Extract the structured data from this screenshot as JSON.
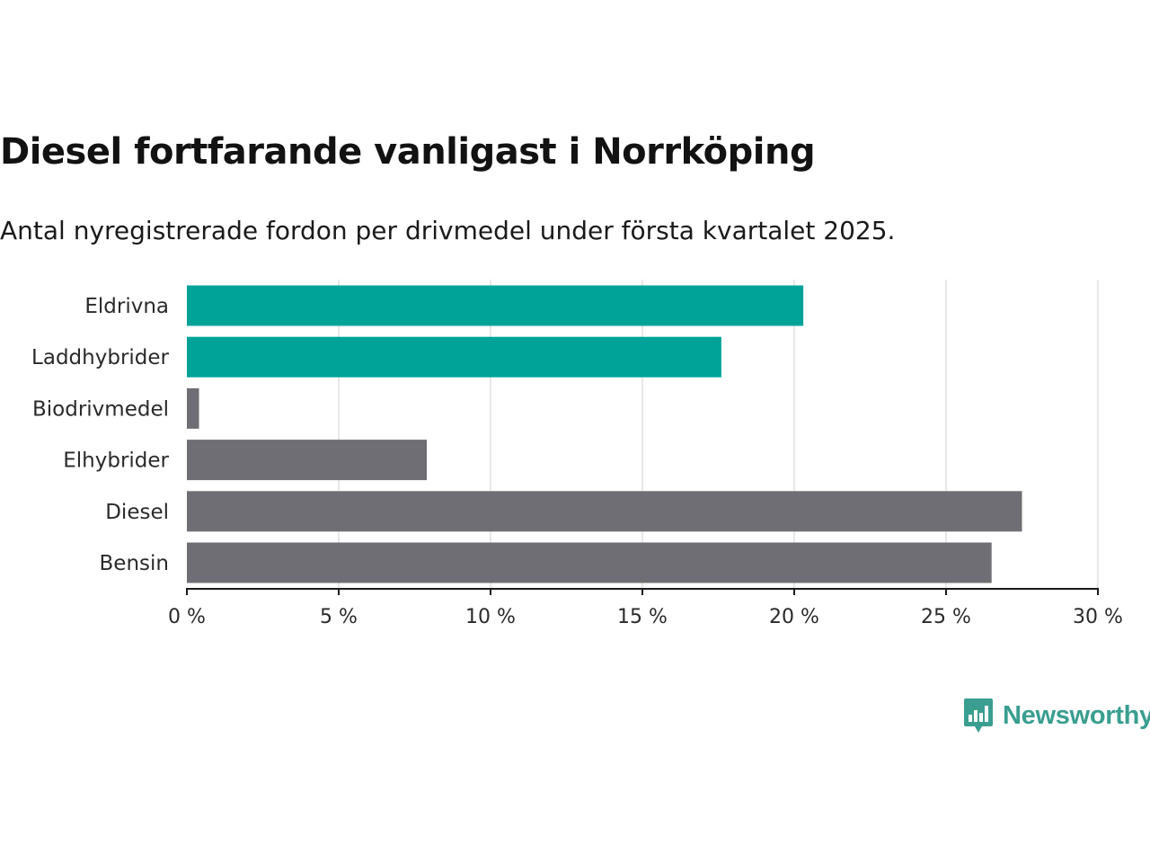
{
  "chart_data": {
    "type": "bar",
    "orientation": "horizontal",
    "title": "Diesel fortfarande vanligast i Norrköping",
    "subtitle": "Antal nyregistrerade fordon per drivmedel under första kvartalet 2025.",
    "categories": [
      "Eldrivna",
      "Laddhybrider",
      "Biodrivmedel",
      "Elhybrider",
      "Diesel",
      "Bensin"
    ],
    "values": [
      20.3,
      17.6,
      0.4,
      7.9,
      27.5,
      26.5
    ],
    "bar_colors": [
      "#00a398",
      "#00a398",
      "#6f6e74",
      "#6f6e74",
      "#6f6e74",
      "#6f6e74"
    ],
    "xlim": [
      0,
      30
    ],
    "xticks": [
      0,
      5,
      10,
      15,
      20,
      25,
      30
    ],
    "xtick_labels": [
      "0 %",
      "5 %",
      "10 %",
      "15 %",
      "20 %",
      "25 %",
      "30 %"
    ],
    "grid": "vertical",
    "xlabel": "",
    "ylabel": ""
  },
  "branding": {
    "logo_text": "Newsworthy",
    "logo_icon": "bar-chart-speech-bubble-icon",
    "accent_color": "#3a9e90"
  }
}
